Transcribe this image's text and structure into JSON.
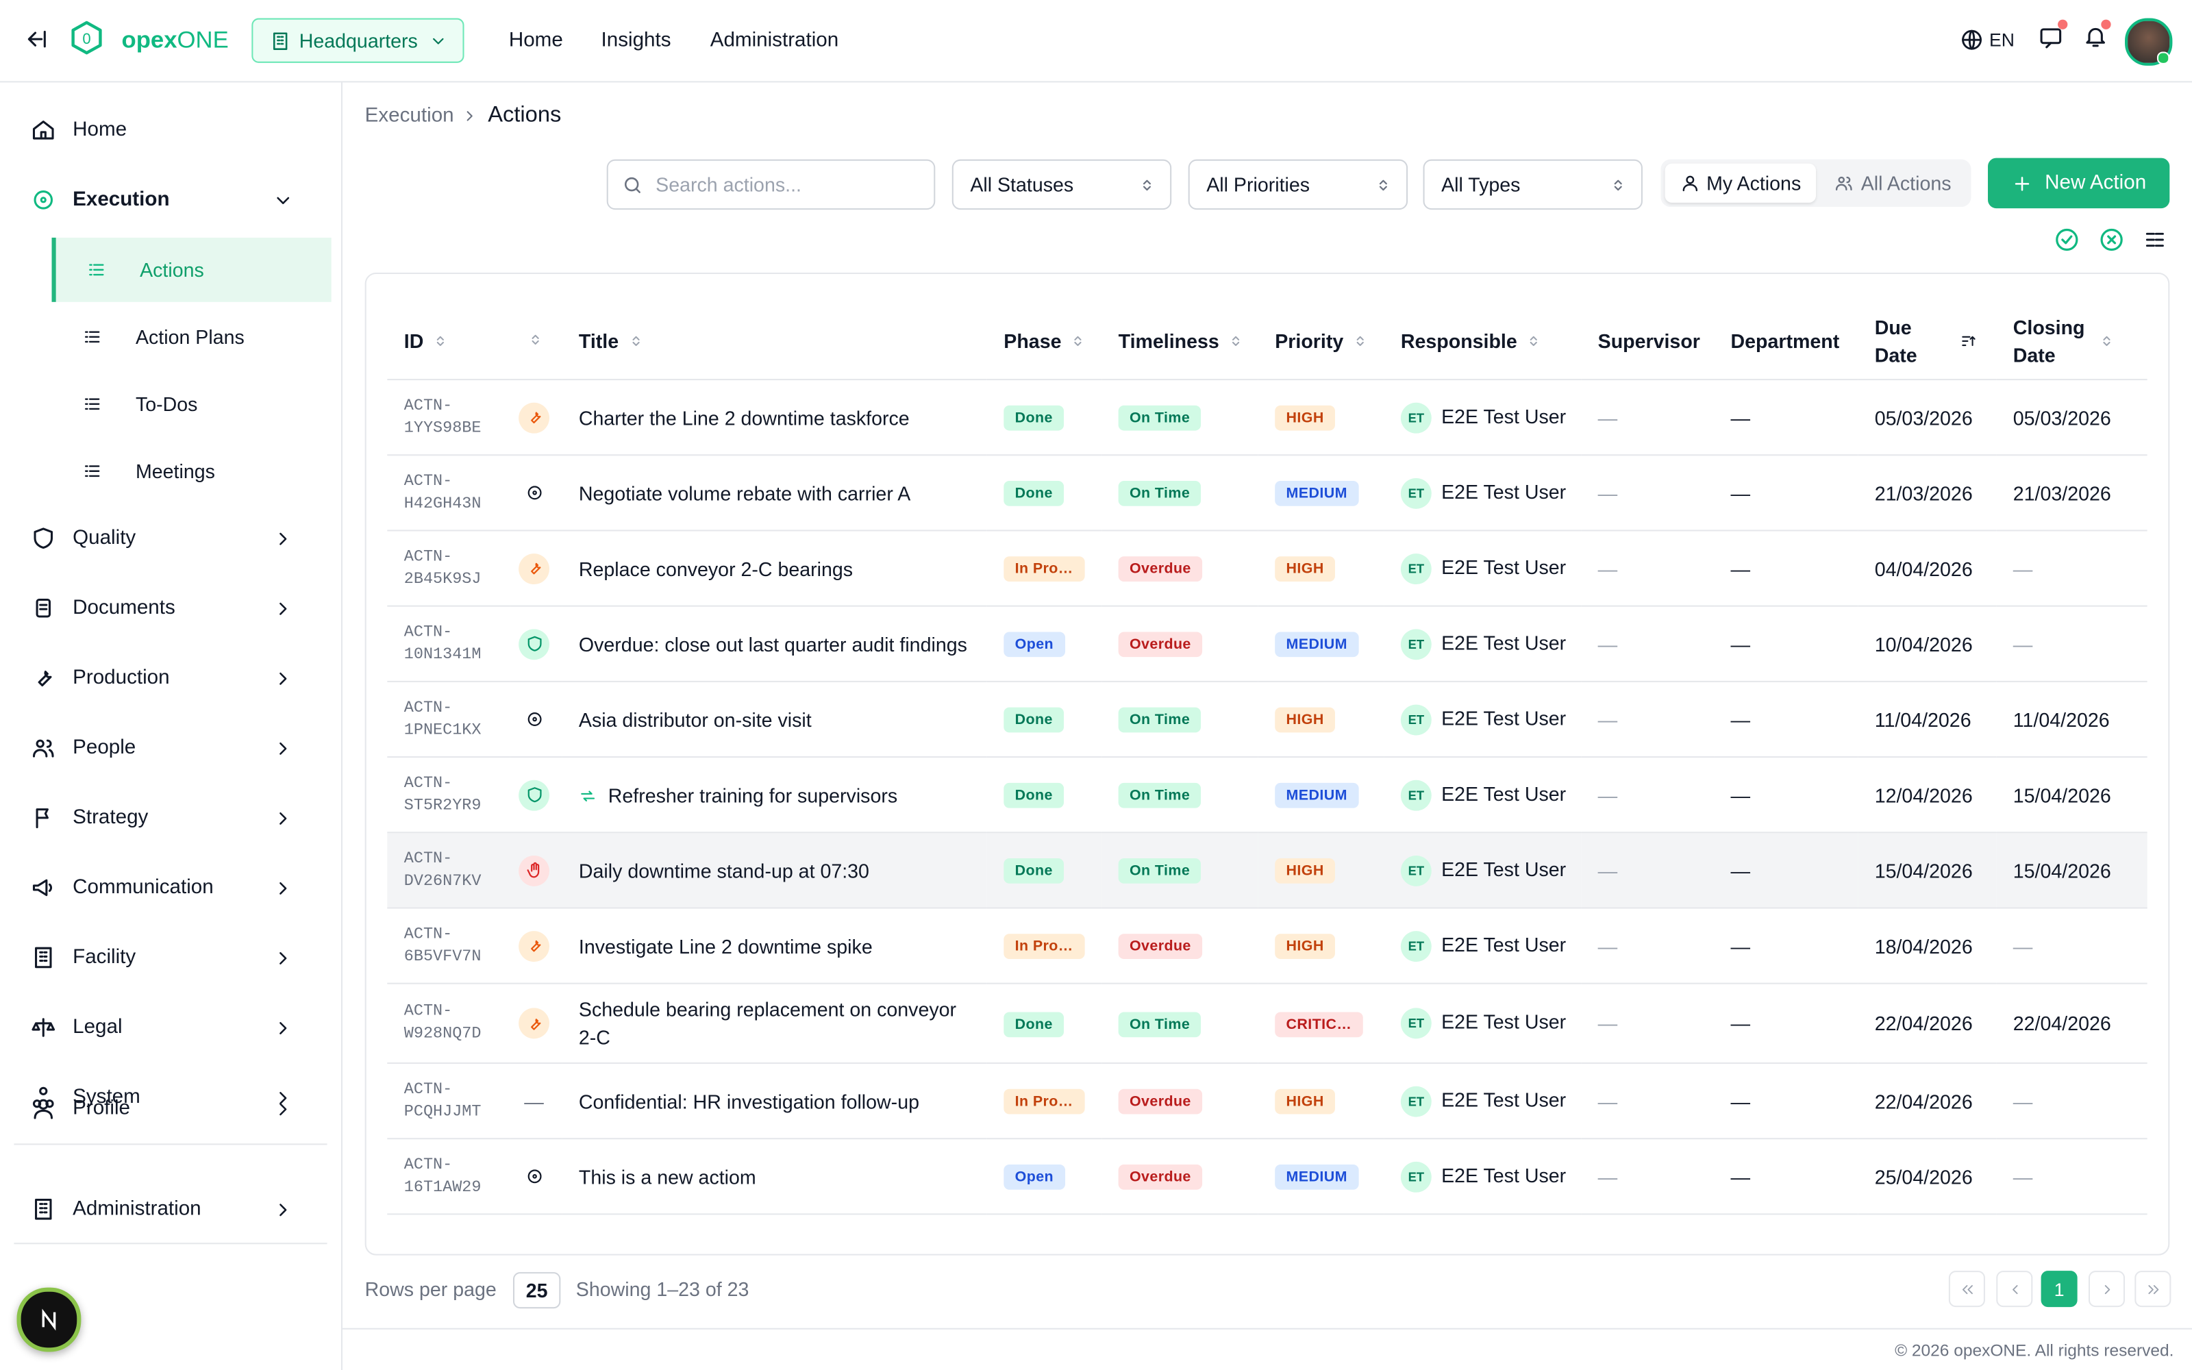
{
  "header": {
    "brand_prefix": "opex",
    "brand_suffix": "ONE",
    "site": "Headquarters",
    "nav": [
      "Home",
      "Insights",
      "Administration"
    ],
    "language": "EN"
  },
  "sidebar": {
    "items": [
      {
        "label": "Home",
        "icon": "home"
      },
      {
        "label": "Execution",
        "icon": "target",
        "expanded": true,
        "children": [
          {
            "label": "Actions",
            "active": true
          },
          {
            "label": "Action Plans"
          },
          {
            "label": "To-Dos"
          },
          {
            "label": "Meetings"
          }
        ]
      },
      {
        "label": "Quality",
        "icon": "shield",
        "chevron": true
      },
      {
        "label": "Documents",
        "icon": "doc",
        "chevron": true
      },
      {
        "label": "Production",
        "icon": "wrench",
        "chevron": true
      },
      {
        "label": "People",
        "icon": "people",
        "chevron": true
      },
      {
        "label": "Strategy",
        "icon": "flag",
        "chevron": true
      },
      {
        "label": "Communication",
        "icon": "megaphone",
        "chevron": true
      },
      {
        "label": "Facility",
        "icon": "building",
        "chevron": true
      },
      {
        "label": "Legal",
        "icon": "scale",
        "chevron": true
      },
      {
        "label": "System",
        "icon": "nodes",
        "chevron": true
      }
    ],
    "profile": "Profile",
    "administration": "Administration"
  },
  "breadcrumb": [
    "Execution",
    "Actions"
  ],
  "toolbar": {
    "search_placeholder": "Search actions...",
    "filters": [
      "All Statuses",
      "All Priorities",
      "All Types"
    ],
    "toggle": [
      "My Actions",
      "All Actions"
    ],
    "new_button": "New Action"
  },
  "table": {
    "columns": [
      "ID",
      "Title",
      "Phase",
      "Timeliness",
      "Priority",
      "Responsible",
      "Supervisor",
      "Department",
      "Due Date",
      "Closing Date"
    ],
    "rows": [
      {
        "id": "ACTN-1YYS98BE",
        "icon": "wrench",
        "title": "Charter the Line 2 downtime taskforce",
        "phase": "Done",
        "timeliness": "On Time",
        "priority": "HIGH",
        "initials": "ET",
        "responsible": "E2E Test User",
        "supervisor": "—",
        "department": "—",
        "due_date": "05/03/2026",
        "closing_date": "05/03/2026"
      },
      {
        "id": "ACTN-H42GH43N",
        "icon": "target",
        "title": "Negotiate volume rebate with carrier A",
        "phase": "Done",
        "timeliness": "On Time",
        "priority": "MEDIUM",
        "initials": "ET",
        "responsible": "E2E Test User",
        "supervisor": "—",
        "department": "—",
        "due_date": "21/03/2026",
        "closing_date": "21/03/2026"
      },
      {
        "id": "ACTN-2B45K9SJ",
        "icon": "wrench",
        "title": "Replace conveyor 2-C bearings",
        "phase": "In Pro…",
        "timeliness": "Overdue",
        "priority": "HIGH",
        "initials": "ET",
        "responsible": "E2E Test User",
        "supervisor": "—",
        "department": "—",
        "due_date": "04/04/2026",
        "closing_date": "—"
      },
      {
        "id": "ACTN-10N1341M",
        "icon": "shield",
        "title": "Overdue: close out last quarter audit findings",
        "phase": "Open",
        "timeliness": "Overdue",
        "priority": "MEDIUM",
        "initials": "ET",
        "responsible": "E2E Test User",
        "supervisor": "—",
        "department": "—",
        "due_date": "10/04/2026",
        "closing_date": "—"
      },
      {
        "id": "ACTN-1PNEC1KX",
        "icon": "target",
        "title": "Asia distributor on-site visit",
        "phase": "Done",
        "timeliness": "On Time",
        "priority": "HIGH",
        "initials": "ET",
        "responsible": "E2E Test User",
        "supervisor": "—",
        "department": "—",
        "due_date": "11/04/2026",
        "closing_date": "11/04/2026"
      },
      {
        "id": "ACTN-ST5R2YR9",
        "icon": "shield",
        "title": "Refresher training for supervisors",
        "title_icon": true,
        "phase": "Done",
        "timeliness": "On Time",
        "priority": "MEDIUM",
        "initials": "ET",
        "responsible": "E2E Test User",
        "supervisor": "—",
        "department": "—",
        "due_date": "12/04/2026",
        "closing_date": "15/04/2026"
      },
      {
        "id": "ACTN-DV26N7KV",
        "icon": "hand",
        "title": "Daily downtime stand-up at 07:30",
        "phase": "Done",
        "timeliness": "On Time",
        "priority": "HIGH",
        "initials": "ET",
        "responsible": "E2E Test User",
        "supervisor": "—",
        "department": "—",
        "due_date": "15/04/2026",
        "closing_date": "15/04/2026",
        "highlighted": true
      },
      {
        "id": "ACTN-6B5VFV7N",
        "icon": "wrench",
        "title": "Investigate Line 2 downtime spike",
        "phase": "In Pro…",
        "timeliness": "Overdue",
        "priority": "HIGH",
        "initials": "ET",
        "responsible": "E2E Test User",
        "supervisor": "—",
        "department": "—",
        "due_date": "18/04/2026",
        "closing_date": "—"
      },
      {
        "id": "ACTN-W928NQ7D",
        "icon": "wrench",
        "title": "Schedule bearing replacement on conveyor 2-C",
        "phase": "Done",
        "timeliness": "On Time",
        "priority": "CRITIC…",
        "initials": "ET",
        "responsible": "E2E Test User",
        "supervisor": "—",
        "department": "—",
        "due_date": "22/04/2026",
        "closing_date": "22/04/2026"
      },
      {
        "id": "ACTN-PCQHJJMT",
        "icon_text": "—",
        "title": "Confidential: HR investigation follow-up",
        "phase": "In Pro…",
        "timeliness": "Overdue",
        "priority": "HIGH",
        "initials": "ET",
        "responsible": "E2E Test User",
        "supervisor": "—",
        "department": "—",
        "due_date": "22/04/2026",
        "closing_date": "—"
      },
      {
        "id": "ACTN-16T1AW29",
        "icon": "target",
        "title": "This is a new actiom",
        "phase": "Open",
        "timeliness": "Overdue",
        "priority": "MEDIUM",
        "initials": "ET",
        "responsible": "E2E Test User",
        "supervisor": "—",
        "department": "—",
        "due_date": "25/04/2026",
        "closing_date": "—"
      }
    ]
  },
  "footer": {
    "rows_per_page_label": "Rows per page",
    "rows_per_page": "25",
    "showing": "Showing 1–23 of 23",
    "page": "1",
    "copyright": "© 2026 opexONE. All rights reserved."
  }
}
